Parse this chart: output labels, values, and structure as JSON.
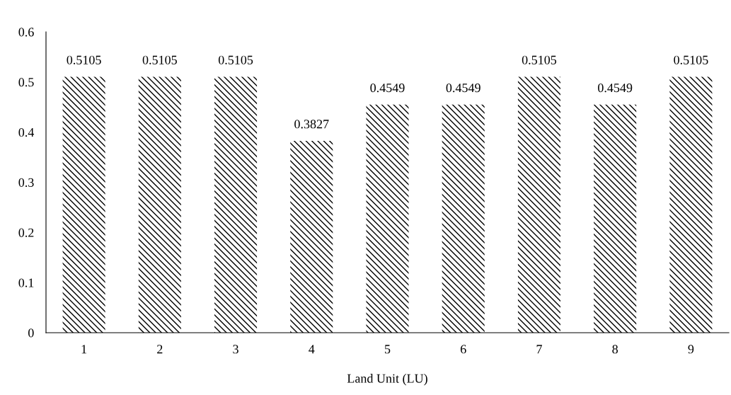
{
  "chart_data": {
    "type": "bar",
    "xlabel": "Land Unit (LU)",
    "categories": [
      "1",
      "2",
      "3",
      "4",
      "5",
      "6",
      "7",
      "8",
      "9"
    ],
    "values": [
      0.5105,
      0.5105,
      0.5105,
      0.3827,
      0.4549,
      0.4549,
      0.5105,
      0.4549,
      0.5105
    ],
    "color": "#000000",
    "ylim": [
      0,
      0.6
    ],
    "yticks": [
      0,
      0.1,
      0.2,
      0.3,
      0.4,
      0.5,
      0.6
    ],
    "data_labels": true,
    "grid": false,
    "legend": false
  }
}
